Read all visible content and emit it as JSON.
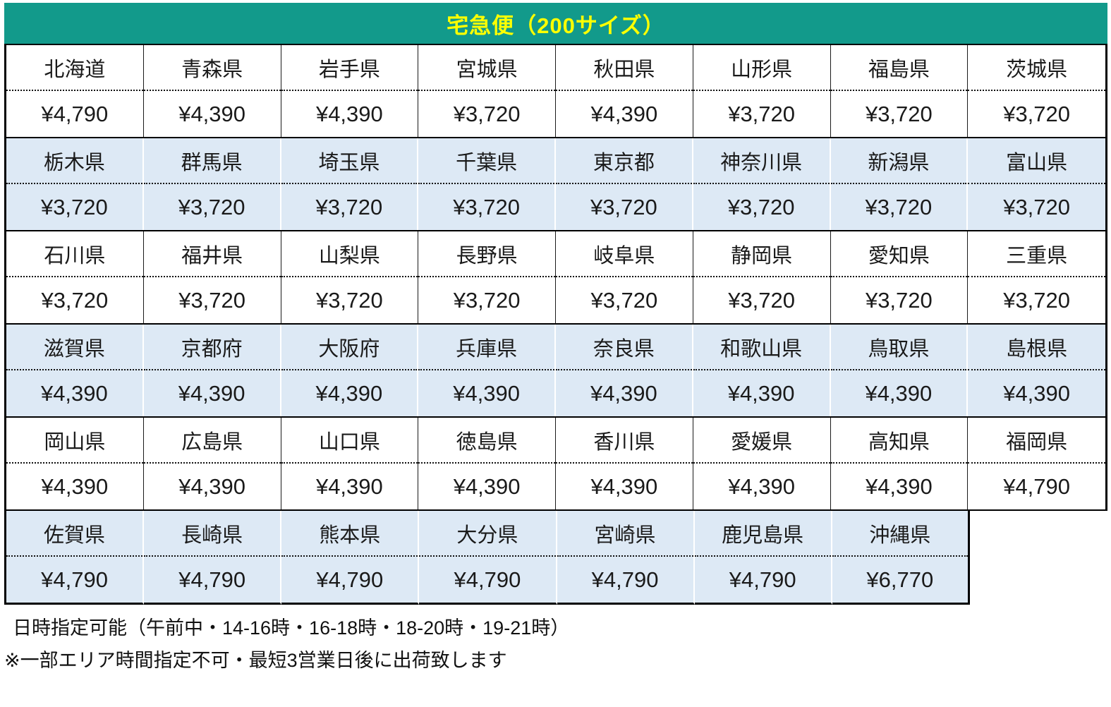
{
  "header": {
    "title": "宅急便（200サイズ）",
    "bg_color": "#129a8b",
    "text_color": "#ffff00"
  },
  "colors": {
    "band_blue": "#dde9f5",
    "band_white": "#ffffff",
    "border": "#000000",
    "cell_text": "#1a1a1a"
  },
  "table": {
    "columns": 8,
    "bands": [
      {
        "variant": "white",
        "cells": [
          {
            "name": "北海道",
            "price": "¥4,790"
          },
          {
            "name": "青森県",
            "price": "¥4,390"
          },
          {
            "name": "岩手県",
            "price": "¥4,390"
          },
          {
            "name": "宮城県",
            "price": "¥3,720"
          },
          {
            "name": "秋田県",
            "price": "¥4,390"
          },
          {
            "name": "山形県",
            "price": "¥3,720"
          },
          {
            "name": "福島県",
            "price": "¥3,720"
          },
          {
            "name": "茨城県",
            "price": "¥3,720"
          }
        ]
      },
      {
        "variant": "blue",
        "cells": [
          {
            "name": "栃木県",
            "price": "¥3,720"
          },
          {
            "name": "群馬県",
            "price": "¥3,720"
          },
          {
            "name": "埼玉県",
            "price": "¥3,720"
          },
          {
            "name": "千葉県",
            "price": "¥3,720"
          },
          {
            "name": "東京都",
            "price": "¥3,720"
          },
          {
            "name": "神奈川県",
            "price": "¥3,720"
          },
          {
            "name": "新潟県",
            "price": "¥3,720"
          },
          {
            "name": "富山県",
            "price": "¥3,720"
          }
        ]
      },
      {
        "variant": "white",
        "cells": [
          {
            "name": "石川県",
            "price": "¥3,720"
          },
          {
            "name": "福井県",
            "price": "¥3,720"
          },
          {
            "name": "山梨県",
            "price": "¥3,720"
          },
          {
            "name": "長野県",
            "price": "¥3,720"
          },
          {
            "name": "岐阜県",
            "price": "¥3,720"
          },
          {
            "name": "静岡県",
            "price": "¥3,720"
          },
          {
            "name": "愛知県",
            "price": "¥3,720"
          },
          {
            "name": "三重県",
            "price": "¥3,720"
          }
        ]
      },
      {
        "variant": "blue",
        "cells": [
          {
            "name": "滋賀県",
            "price": "¥4,390"
          },
          {
            "name": "京都府",
            "price": "¥4,390"
          },
          {
            "name": "大阪府",
            "price": "¥4,390"
          },
          {
            "name": "兵庫県",
            "price": "¥4,390"
          },
          {
            "name": "奈良県",
            "price": "¥4,390"
          },
          {
            "name": "和歌山県",
            "price": "¥4,390"
          },
          {
            "name": "鳥取県",
            "price": "¥4,390"
          },
          {
            "name": "島根県",
            "price": "¥4,390"
          }
        ]
      },
      {
        "variant": "white",
        "cells": [
          {
            "name": "岡山県",
            "price": "¥4,390"
          },
          {
            "name": "広島県",
            "price": "¥4,390"
          },
          {
            "name": "山口県",
            "price": "¥4,390"
          },
          {
            "name": "徳島県",
            "price": "¥4,390"
          },
          {
            "name": "香川県",
            "price": "¥4,390"
          },
          {
            "name": "愛媛県",
            "price": "¥4,390"
          },
          {
            "name": "高知県",
            "price": "¥4,390"
          },
          {
            "name": "福岡県",
            "price": "¥4,790"
          }
        ]
      },
      {
        "variant": "blue",
        "last": true,
        "cells": [
          {
            "name": "佐賀県",
            "price": "¥4,790"
          },
          {
            "name": "長崎県",
            "price": "¥4,790"
          },
          {
            "name": "熊本県",
            "price": "¥4,790"
          },
          {
            "name": "大分県",
            "price": "¥4,790"
          },
          {
            "name": "宮崎県",
            "price": "¥4,790"
          },
          {
            "name": "鹿児島県",
            "price": "¥4,790"
          },
          {
            "name": "沖縄県",
            "price": "¥6,770"
          }
        ]
      }
    ]
  },
  "footer": {
    "line1": "日時指定可能（午前中・14-16時・16-18時・18-20時・19-21時）",
    "line2": "※一部エリア時間指定不可・最短3営業日後に出荷致します"
  }
}
